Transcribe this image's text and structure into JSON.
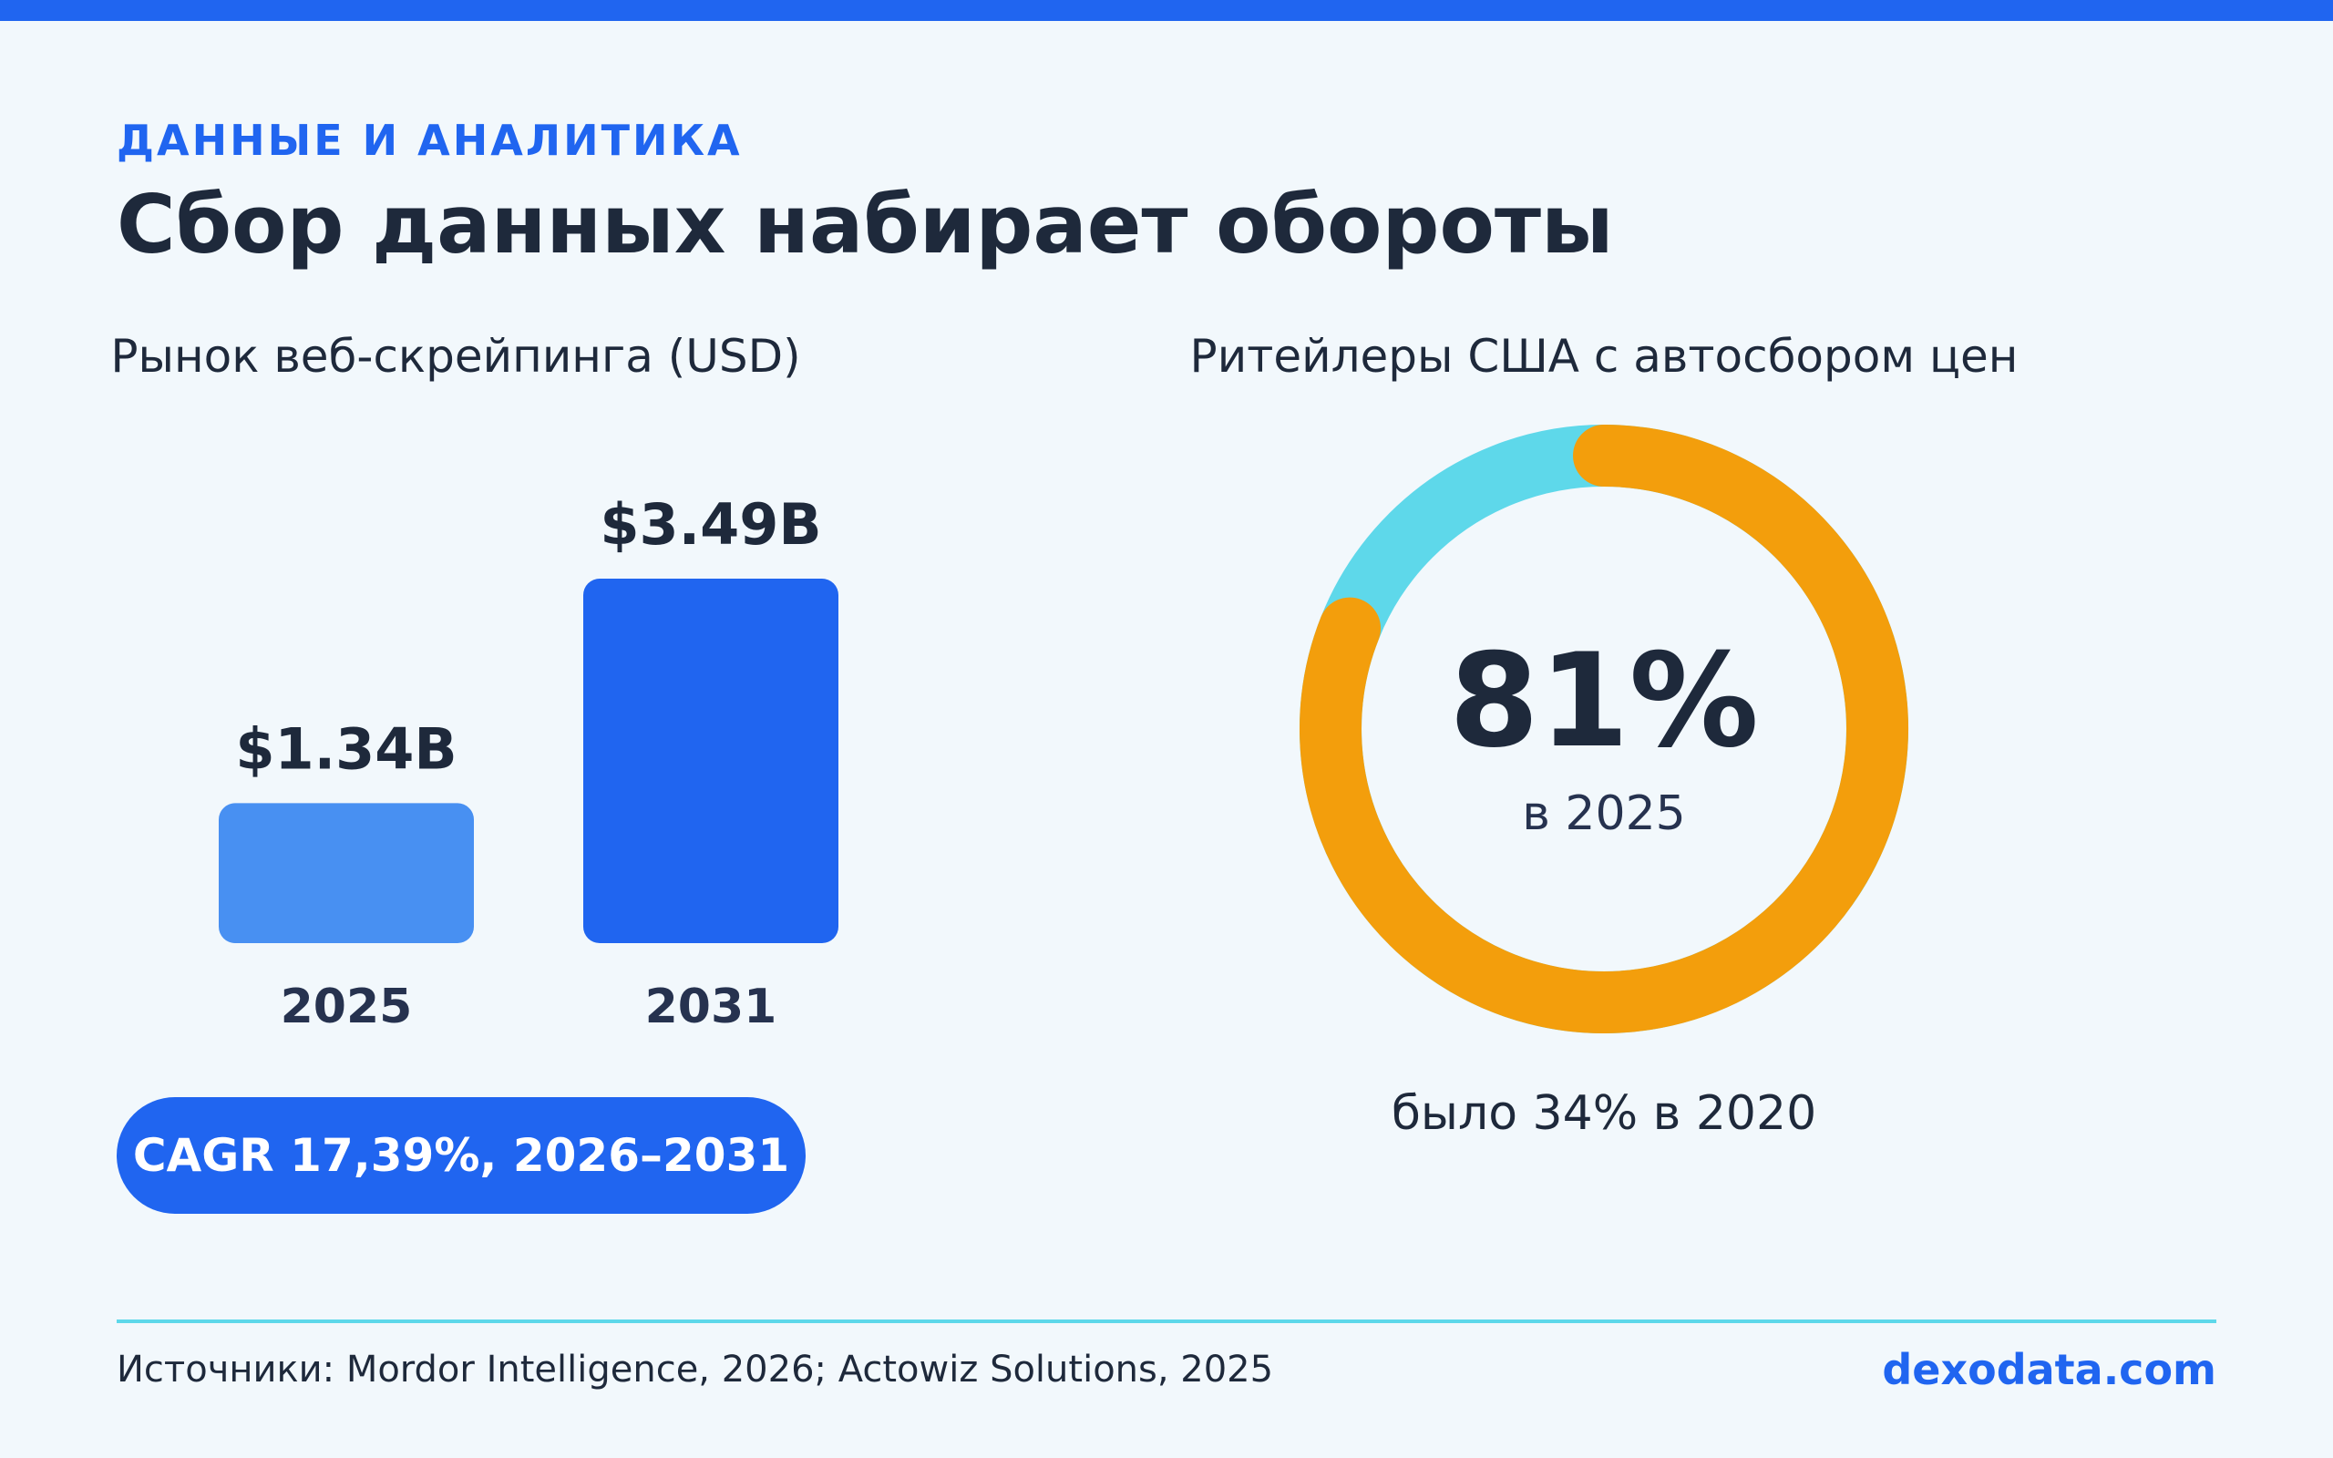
{
  "header": {
    "eyebrow": "ДАННЫЕ И АНАЛИТИКА",
    "title": "Сбор данных набирает обороты"
  },
  "chart_data": [
    {
      "type": "bar",
      "title": "Рынок веб-скрейпинга (USD)",
      "categories": [
        "2025",
        "2031"
      ],
      "values": [
        1.34,
        3.49
      ],
      "value_labels": [
        "$1.34B",
        "$3.49B"
      ],
      "colors": [
        "#4890f2",
        "#2065f0"
      ],
      "grid": false
    },
    {
      "type": "pie",
      "title": "Ритейлеры США с автосбором цен",
      "value": 81,
      "center_value": "81%",
      "center_caption": "в 2025",
      "footnote": "было 34% в 2020",
      "colors": {
        "value": "#f39e0c",
        "remainder": "#5ed8ea"
      }
    }
  ],
  "cagr": {
    "label": "CAGR 17,39%, 2026–2031"
  },
  "footer": {
    "sources": "Источники: Mordor Intelligence, 2026; Actowiz Solutions, 2025",
    "brand": "dexodata.com"
  },
  "colors": {
    "accent": "#2065f0",
    "text": "#1e293b",
    "background": "#f2f8fc",
    "divider": "#5ed8ea"
  }
}
